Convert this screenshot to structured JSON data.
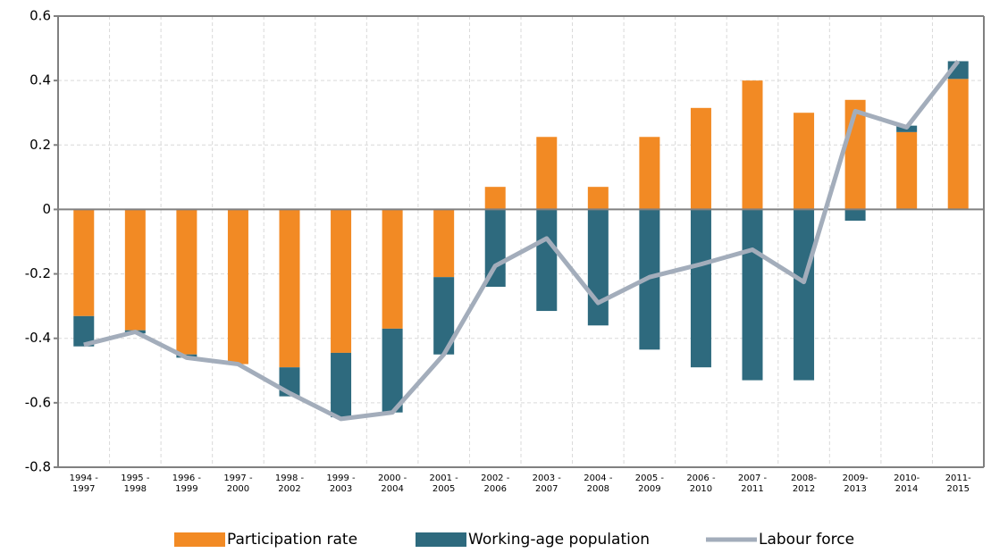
{
  "chart_data": {
    "type": "bar",
    "categories": [
      "1994 -\n1997",
      "1995 -\n1998",
      "1996 -\n1999",
      "1997 -\n2000",
      "1998 -\n2002",
      "1999 -\n2003",
      "2000 -\n2004",
      "2001 -\n2005",
      "2002 -\n2006",
      "2003 -\n2007",
      "2004 -\n2008",
      "2005 -\n2009",
      "2006 -\n2010",
      "2007 -\n2011",
      "2008-\n2012",
      "2009-\n2013",
      "2010-\n2014",
      "2011-\n2015"
    ],
    "series": [
      {
        "name": "Participation rate",
        "color": "#f28a24",
        "type": "bar",
        "values": [
          -0.331,
          -0.375,
          -0.45,
          -0.48,
          -0.49,
          -0.445,
          -0.37,
          -0.21,
          0.07,
          0.225,
          0.07,
          0.225,
          0.315,
          0.4,
          0.3,
          0.34,
          0.24,
          0.405
        ]
      },
      {
        "name": "Working-age population",
        "color": "#2e6a7e",
        "type": "bar",
        "values": [
          -0.094,
          -0.01,
          -0.01,
          0,
          -0.09,
          -0.2,
          -0.26,
          -0.24,
          -0.24,
          -0.315,
          -0.36,
          -0.435,
          -0.49,
          -0.53,
          -0.53,
          -0.035,
          0.02,
          0.055
        ]
      },
      {
        "name": "Labour force",
        "color": "#a3adbb",
        "type": "line",
        "values": [
          -0.42,
          -0.38,
          -0.46,
          -0.48,
          -0.57,
          -0.65,
          -0.63,
          -0.45,
          -0.175,
          -0.09,
          -0.29,
          -0.21,
          -0.17,
          -0.125,
          -0.225,
          0.305,
          0.255,
          0.46
        ]
      }
    ],
    "ylim": [
      -0.8,
      0.6
    ],
    "yticks": [
      -0.8,
      -0.6,
      -0.4,
      -0.2,
      0,
      0.2,
      0.4,
      0.6
    ],
    "grid": true,
    "legend": "bottom"
  }
}
